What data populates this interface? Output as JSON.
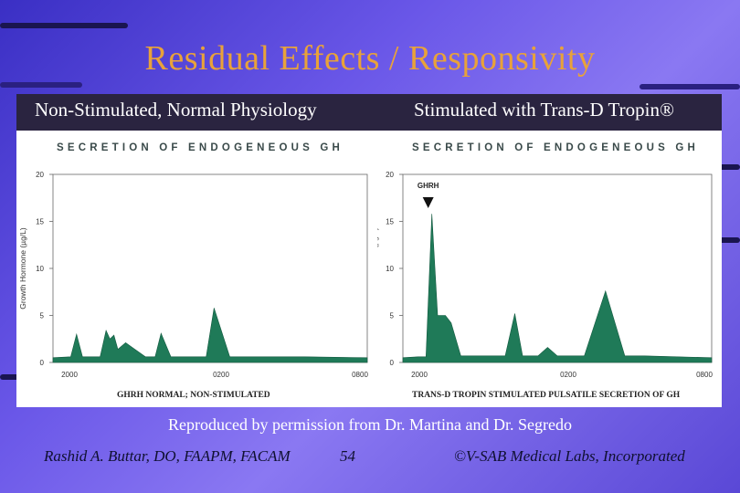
{
  "slide": {
    "title": "Residual Effects / Responsivity",
    "left_header": "Non-Stimulated, Normal Physiology",
    "right_header": "Stimulated with Trans-D Tropin®",
    "credit": "Reproduced by permission from Dr. Martina and Dr. Segredo",
    "footer_author": "Rashid A. Buttar, DO, FAAPM, FACAM",
    "footer_page": "54",
    "footer_company": "©V-SAB Medical Labs, Incorporated"
  },
  "colors": {
    "fill": "#1f7a58",
    "title": "#e8a23a",
    "heading": "#3a4a4a"
  },
  "chart_data": [
    {
      "type": "area",
      "title": "SECRETION OF ENDOGENEOUS GH",
      "ylabel": "Growth Hormone (µg/L)",
      "caption": "GHRH NORMAL; NON-STIMULATED",
      "x_ticks": [
        "2000",
        "0200",
        "0800"
      ],
      "y_ticks": [
        "0",
        "5",
        "10",
        "15",
        "20"
      ],
      "ylim": [
        0,
        20
      ],
      "x": [
        0,
        0.9,
        1.2,
        1.5,
        2.4,
        2.7,
        2.9,
        3.1,
        3.3,
        3.7,
        4.7,
        5.2,
        5.5,
        6.0,
        7.2,
        7.8,
        8.2,
        9.0,
        9.5,
        10.5,
        11.0,
        11.5,
        12.0,
        12.8,
        16.0
      ],
      "values": [
        0.5,
        0.6,
        3.0,
        0.6,
        0.6,
        3.4,
        2.5,
        2.9,
        1.4,
        2.1,
        0.6,
        0.6,
        3.1,
        0.6,
        0.6,
        0.6,
        5.8,
        0.6,
        0.6,
        0.6,
        0.6,
        0.6,
        0.6,
        0.6,
        0.5
      ],
      "xlim": [
        0,
        16
      ]
    },
    {
      "type": "area",
      "title": "SECRETION OF ENDOGENEOUS GH",
      "ylabel": "Growth Hormone (µg/L)",
      "caption": "TRANS-D TROPIN STIMULATED PULSATILE SECRETION OF GH",
      "annotation": "GHRH",
      "x_ticks": [
        "2000",
        "0200",
        "0800"
      ],
      "y_ticks": [
        "0",
        "5",
        "10",
        "15",
        "20"
      ],
      "ylim": [
        0,
        20
      ],
      "x": [
        0,
        0.8,
        1.2,
        1.5,
        1.8,
        2.2,
        2.5,
        3.0,
        5.0,
        5.3,
        5.8,
        6.2,
        7.0,
        7.5,
        8.0,
        9.0,
        9.4,
        10.5,
        11.5,
        12.0,
        12.5,
        16.0
      ],
      "values": [
        0.5,
        0.6,
        0.6,
        15.8,
        5.0,
        5.0,
        4.2,
        0.7,
        0.7,
        0.7,
        5.2,
        0.7,
        0.7,
        1.6,
        0.7,
        0.7,
        0.7,
        7.6,
        0.7,
        0.7,
        0.7,
        0.5
      ],
      "xlim": [
        0,
        16
      ]
    }
  ]
}
